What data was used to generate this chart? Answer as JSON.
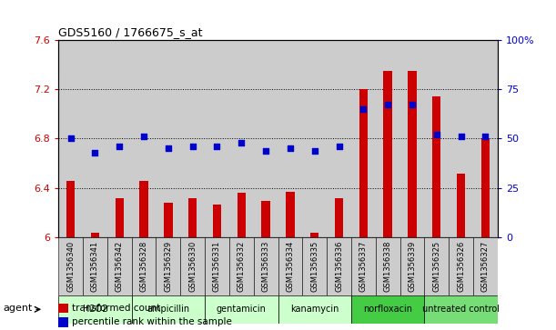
{
  "title": "GDS5160 / 1766675_s_at",
  "samples": [
    "GSM1356340",
    "GSM1356341",
    "GSM1356342",
    "GSM1356328",
    "GSM1356329",
    "GSM1356330",
    "GSM1356331",
    "GSM1356332",
    "GSM1356333",
    "GSM1356334",
    "GSM1356335",
    "GSM1356336",
    "GSM1356337",
    "GSM1356338",
    "GSM1356339",
    "GSM1356325",
    "GSM1356326",
    "GSM1356327"
  ],
  "transformed_count": [
    6.46,
    6.04,
    6.32,
    6.46,
    6.28,
    6.32,
    6.27,
    6.36,
    6.3,
    6.37,
    6.04,
    6.32,
    7.2,
    7.35,
    7.35,
    7.14,
    6.52,
    6.8
  ],
  "percentile_rank": [
    50,
    43,
    46,
    51,
    45,
    46,
    46,
    48,
    44,
    45,
    44,
    46,
    65,
    67,
    67,
    52,
    51,
    51
  ],
  "groups": [
    {
      "name": "H2O2",
      "start": 0,
      "end": 3,
      "color": "#ccffcc"
    },
    {
      "name": "ampicillin",
      "start": 3,
      "end": 6,
      "color": "#ccffcc"
    },
    {
      "name": "gentamicin",
      "start": 6,
      "end": 9,
      "color": "#ccffcc"
    },
    {
      "name": "kanamycin",
      "start": 9,
      "end": 12,
      "color": "#ccffcc"
    },
    {
      "name": "norfloxacin",
      "start": 12,
      "end": 15,
      "color": "#44cc44"
    },
    {
      "name": "untreated control",
      "start": 15,
      "end": 18,
      "color": "#77dd77"
    }
  ],
  "ylim_left": [
    6.0,
    7.6
  ],
  "ylim_right": [
    0,
    100
  ],
  "yticks_left": [
    6.0,
    6.4,
    6.8,
    7.2,
    7.6
  ],
  "yticks_right": [
    0,
    25,
    50,
    75,
    100
  ],
  "ytick_labels_left": [
    "6",
    "6.4",
    "6.8",
    "7.2",
    "7.6"
  ],
  "ytick_labels_right": [
    "0",
    "25",
    "50",
    "75",
    "100%"
  ],
  "bar_color": "#cc0000",
  "dot_color": "#0000cc",
  "col_bg_color": "#cccccc",
  "plot_bg": "#ffffff",
  "legend_bar_label": "transformed count",
  "legend_dot_label": "percentile rank within the sample",
  "agent_label": "agent",
  "group_colors": [
    "#ccffcc",
    "#ccffcc",
    "#ccffcc",
    "#ccffcc",
    "#44cc44",
    "#77dd77"
  ]
}
